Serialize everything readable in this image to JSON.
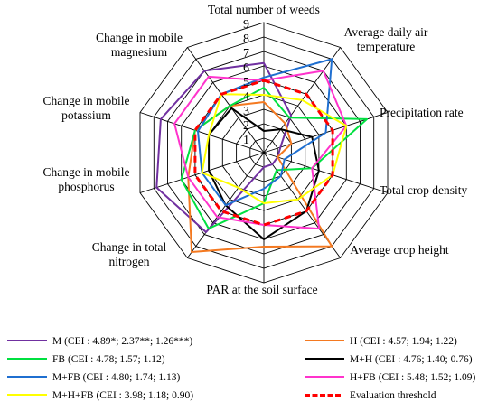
{
  "chart_data": {
    "type": "radar",
    "title": "",
    "rlim": [
      0,
      9
    ],
    "r_ticks": [
      "1",
      "2",
      "3",
      "4",
      "5",
      "6",
      "7",
      "8",
      "9"
    ],
    "axes": [
      "Total number of weeds",
      "Average daily air temperature",
      "Precipitation rate",
      "Total crop density",
      "Average crop height",
      "PAR at the soil surface",
      "Change in total nitrogen",
      "Change in mobile phosphorus",
      "Change in mobile potassium",
      "Change in mobile magnesium"
    ],
    "axis_label_lines": [
      [
        "Total number of weeds"
      ],
      [
        "Average daily air",
        "temperature"
      ],
      [
        "Precipitation rate"
      ],
      [
        "Total crop density"
      ],
      [
        "Average crop height"
      ],
      [
        "PAR at the soil surface"
      ],
      [
        "Change in total",
        "nitrogen"
      ],
      [
        "Change in mobile",
        "phosphorus"
      ],
      [
        "Change in mobile",
        "potassium"
      ],
      [
        "Change in mobile",
        "magnesium"
      ]
    ],
    "series": [
      {
        "name": "M (CEI : 4.89*; 2.37**; 1.26***)",
        "color": "#7030a0",
        "dashed": false,
        "values": [
          6.2,
          3.2,
          1.2,
          1.0,
          1.0,
          1.0,
          6.8,
          7.8,
          7.5,
          7.0
        ]
      },
      {
        "name": "H (CEI : 4.57; 1.94; 1.22)",
        "color": "#f47920",
        "dashed": false,
        "values": [
          3.5,
          2.5,
          2.0,
          1.0,
          8.0,
          6.5,
          8.5,
          5.5,
          5.0,
          4.0
        ]
      },
      {
        "name": "FB (CEI : 4.78; 1.57; 1.12)",
        "color": "#00e040",
        "dashed": false,
        "values": [
          4.5,
          3.0,
          7.5,
          3.5,
          1.5,
          3.5,
          6.5,
          6.0,
          5.0,
          4.0
        ]
      },
      {
        "name": "M+H (CEI : 4.76; 1.40; 0.76)",
        "color": "#000000",
        "dashed": false,
        "values": [
          1.5,
          2.0,
          3.5,
          4.0,
          5.0,
          6.0,
          4.5,
          4.0,
          4.0,
          3.8
        ]
      },
      {
        "name": "M+FB (CEI : 4.80; 1.74; 1.13)",
        "color": "#1f6fd0",
        "dashed": false,
        "values": [
          5.2,
          8.0,
          4.5,
          1.5,
          2.0,
          2.5,
          4.5,
          4.5,
          4.8,
          5.0
        ]
      },
      {
        "name": "H+FB (CEI : 5.48; 1.52; 1.09)",
        "color": "#ff33cc",
        "dashed": false,
        "values": [
          5.0,
          7.0,
          6.0,
          3.5,
          6.5,
          5.0,
          5.5,
          5.5,
          6.5,
          6.5
        ]
      },
      {
        "name": "M+H+FB (CEI : 3.98; 1.18; 0.90)",
        "color": "#ffff00",
        "dashed": false,
        "values": [
          4.0,
          4.5,
          6.0,
          5.0,
          4.0,
          3.5,
          3.0,
          4.5,
          4.0,
          5.0
        ]
      },
      {
        "name": "Evaluation threshold",
        "color": "#ff0000",
        "dashed": true,
        "values": [
          5.0,
          5.0,
          5.0,
          5.0,
          5.0,
          5.0,
          5.0,
          5.0,
          5.0,
          5.0
        ]
      }
    ],
    "legend_position": "bottom"
  }
}
